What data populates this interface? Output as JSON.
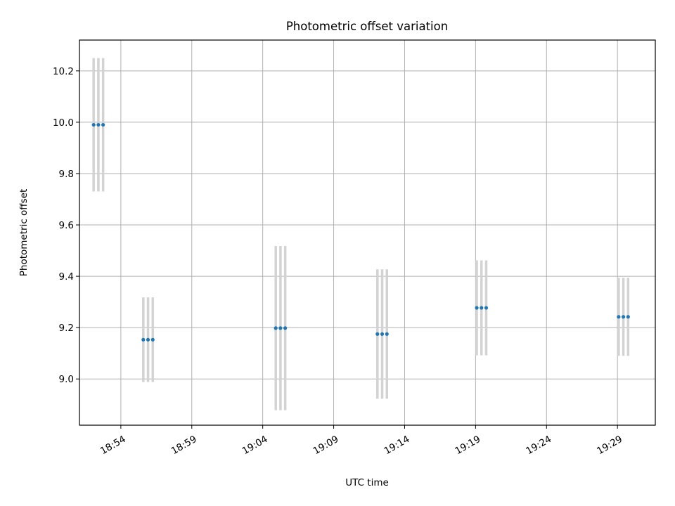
{
  "chart_data": {
    "type": "scatter",
    "title": "Photometric offset variation",
    "xlabel": "UTC time",
    "ylabel": "Photometric offset",
    "x_axis": {
      "kind": "time",
      "xlim": [
        "18:51:05",
        "19:31:40"
      ],
      "ticks": [
        "18:54",
        "18:59",
        "19:04",
        "19:09",
        "19:14",
        "19:19",
        "19:24",
        "19:29"
      ]
    },
    "y_axis": {
      "ylim": [
        8.82,
        10.32
      ],
      "ticks": [
        "9.0",
        "9.2",
        "9.4",
        "9.6",
        "9.8",
        "10.0",
        "10.2"
      ]
    },
    "grid": true,
    "point_color": "#1f77b4",
    "errorbar_color": "#d3d3d3",
    "points": [
      {
        "time": "18:52:05",
        "y": 9.99,
        "yerr": 0.26
      },
      {
        "time": "18:52:25",
        "y": 9.99,
        "yerr": 0.26
      },
      {
        "time": "18:52:45",
        "y": 9.99,
        "yerr": 0.26
      },
      {
        "time": "18:55:35",
        "y": 9.153,
        "yerr": 0.165
      },
      {
        "time": "18:55:55",
        "y": 9.153,
        "yerr": 0.165
      },
      {
        "time": "18:56:15",
        "y": 9.153,
        "yerr": 0.165
      },
      {
        "time": "19:04:55",
        "y": 9.198,
        "yerr": 0.32
      },
      {
        "time": "19:05:15",
        "y": 9.198,
        "yerr": 0.32
      },
      {
        "time": "19:05:35",
        "y": 9.198,
        "yerr": 0.32
      },
      {
        "time": "19:12:05",
        "y": 9.175,
        "yerr": 0.252
      },
      {
        "time": "19:12:25",
        "y": 9.175,
        "yerr": 0.252
      },
      {
        "time": "19:12:45",
        "y": 9.175,
        "yerr": 0.252
      },
      {
        "time": "19:19:05",
        "y": 9.277,
        "yerr": 0.185
      },
      {
        "time": "19:19:25",
        "y": 9.277,
        "yerr": 0.185
      },
      {
        "time": "19:19:45",
        "y": 9.277,
        "yerr": 0.185
      },
      {
        "time": "19:29:05",
        "y": 9.242,
        "yerr": 0.152
      },
      {
        "time": "19:29:25",
        "y": 9.242,
        "yerr": 0.152
      },
      {
        "time": "19:29:45",
        "y": 9.242,
        "yerr": 0.152
      }
    ]
  }
}
